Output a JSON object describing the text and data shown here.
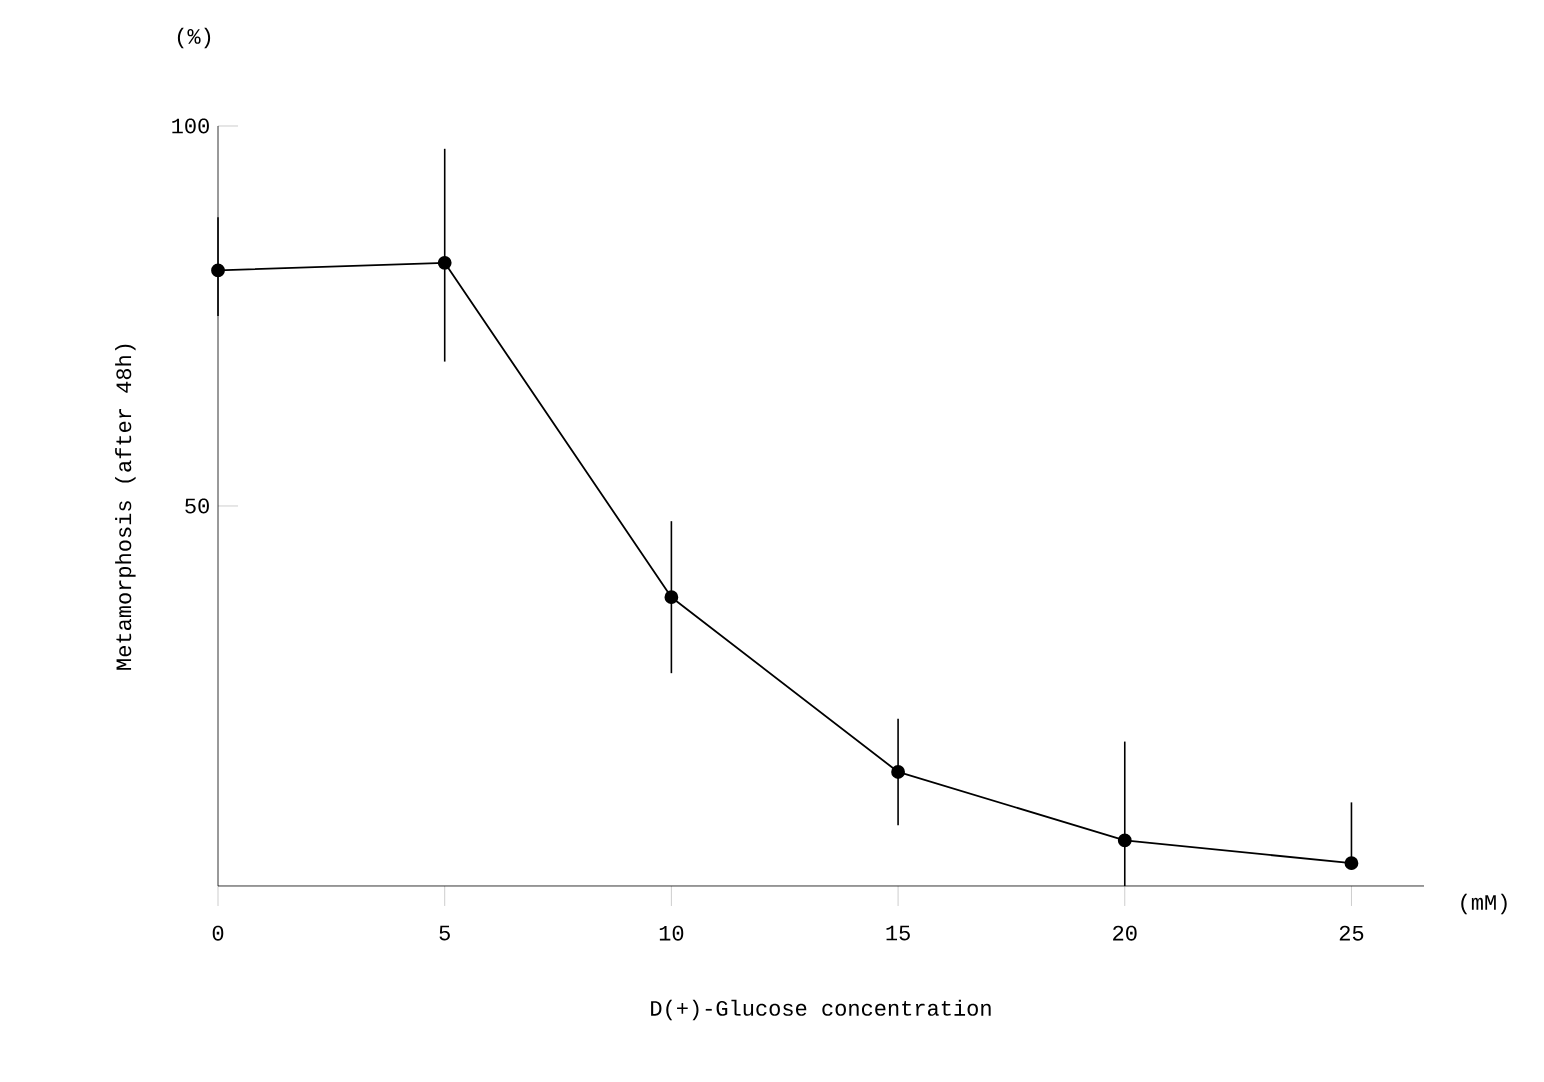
{
  "chart_data": {
    "type": "line",
    "xlabel": "D(+)-Glucose concentration",
    "ylabel": "Metamorphosis (after 48h)",
    "annotations": [
      "(%)",
      "(mM)"
    ],
    "x": [
      0,
      5,
      10,
      15,
      20,
      25
    ],
    "series": [
      {
        "color": "#000000",
        "values": [
          81,
          82,
          38,
          15,
          6,
          3
        ],
        "errors": [
          [
            75,
            88
          ],
          [
            69,
            97
          ],
          [
            28,
            48
          ],
          [
            8,
            22
          ],
          [
            0,
            19
          ],
          [
            3,
            11
          ]
        ]
      }
    ],
    "xlim": [
      0,
      26.6
    ],
    "ylim": [
      0,
      100
    ],
    "xticks": [
      0,
      5,
      10,
      15,
      20,
      25
    ],
    "yticks": [
      50,
      100
    ],
    "grid": false,
    "marker": "circle",
    "line_style": "solid"
  }
}
